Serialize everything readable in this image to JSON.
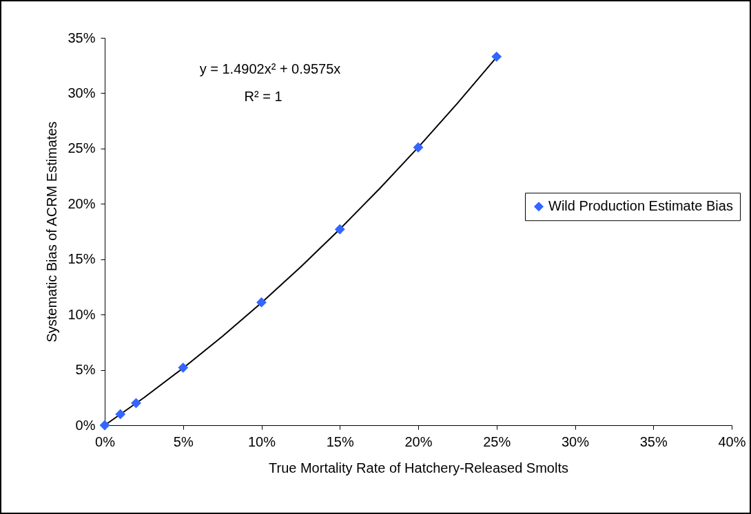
{
  "chart_data": {
    "type": "scatter",
    "xlabel": "True Mortality Rate of Hatchery-Released Smolts",
    "ylabel": "Systematic Bias of ACRM Estimates",
    "xlim": [
      0,
      40
    ],
    "xticks": [
      {
        "value": 0,
        "label": "0%"
      },
      {
        "value": 5,
        "label": "5%"
      },
      {
        "value": 10,
        "label": "10%"
      },
      {
        "value": 15,
        "label": "15%"
      },
      {
        "value": 20,
        "label": "20%"
      },
      {
        "value": 25,
        "label": "25%"
      },
      {
        "value": 30,
        "label": "30%"
      },
      {
        "value": 35,
        "label": "35%"
      },
      {
        "value": 40,
        "label": "40%"
      }
    ],
    "ylim": [
      0,
      35
    ],
    "yticks": [
      {
        "value": 0,
        "label": "0%"
      },
      {
        "value": 5,
        "label": "5%"
      },
      {
        "value": 10,
        "label": "10%"
      },
      {
        "value": 15,
        "label": "15%"
      },
      {
        "value": 20,
        "label": "20%"
      },
      {
        "value": 25,
        "label": "25%"
      },
      {
        "value": 30,
        "label": "30%"
      },
      {
        "value": 35,
        "label": "35%"
      }
    ],
    "x": [
      0,
      1,
      2,
      5,
      10,
      15,
      20,
      25
    ],
    "series": [
      {
        "name": "Wild Production Estimate Bias",
        "color": "#3366ff",
        "marker": "diamond",
        "values": [
          0,
          1.0,
          2.0,
          5.2,
          11.1,
          17.7,
          25.1,
          33.3
        ]
      },
      {
        "type": "line",
        "color": "#000000",
        "marker": "none",
        "line_style": "solid",
        "x": [
          0,
          2.5,
          5,
          7.5,
          10,
          12.5,
          15,
          17.5,
          20,
          22.5,
          25
        ],
        "values": [
          0,
          2.49,
          5.16,
          8.02,
          11.07,
          14.3,
          17.72,
          21.32,
          25.11,
          29.09,
          33.25
        ]
      }
    ],
    "annotations": [
      "y = 1.4902x² + 0.9575x",
      "R² = 1"
    ],
    "legend": "right",
    "grid": false
  }
}
